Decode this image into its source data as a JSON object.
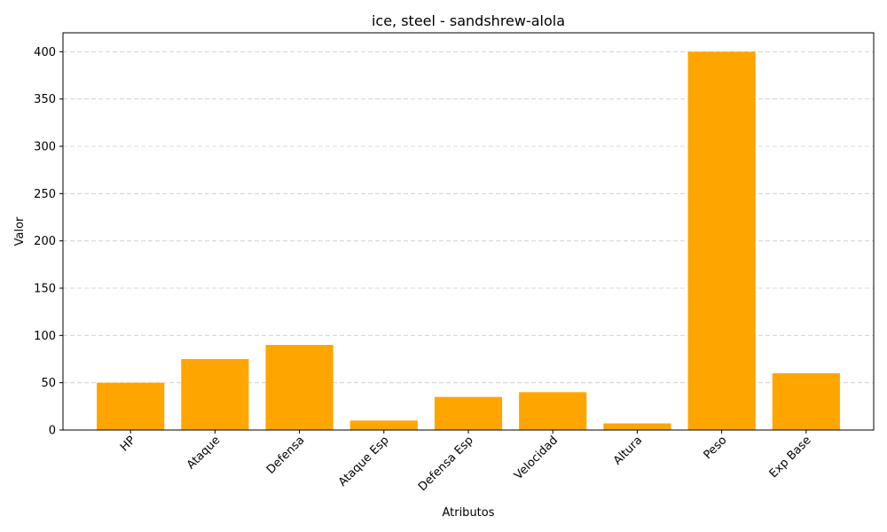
{
  "chart_data": {
    "type": "bar",
    "title": "ice, steel - sandshrew-alola",
    "xlabel": "Atributos",
    "ylabel": "Valor",
    "categories": [
      "HP",
      "Ataque",
      "Defensa",
      "Ataque Esp",
      "Defensa Esp",
      "Velocidad",
      "Altura",
      "Peso",
      "Exp Base"
    ],
    "values": [
      50,
      75,
      90,
      10,
      35,
      40,
      7,
      400,
      60
    ],
    "ylim": [
      0,
      420
    ],
    "yticks": [
      0,
      50,
      100,
      150,
      200,
      250,
      300,
      350,
      400
    ],
    "bar_color": "#ffa500",
    "grid": "y-dashed"
  }
}
